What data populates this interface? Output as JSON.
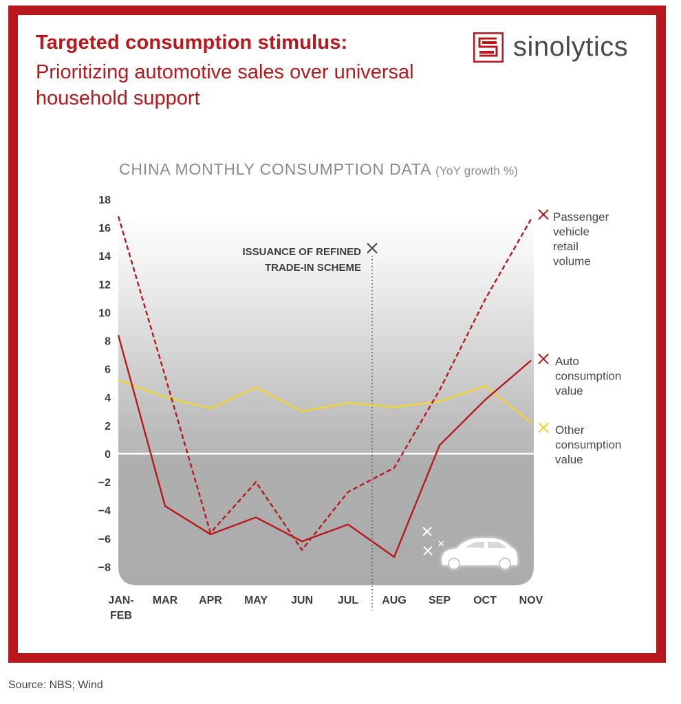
{
  "header": {
    "title_bold": "Targeted consumption stimulus:",
    "title_rest": "Prioritizing automotive sales over universal household support",
    "brand": "sinolytics",
    "brand_color": "#b8181c"
  },
  "chart_title": "CHINA MONTHLY CONSUMPTION DATA",
  "chart_subtitle": "(YoY growth %)",
  "annotation": {
    "line1": "ISSUANCE OF REFINED",
    "line2": "TRADE-IN SCHEME",
    "position": "between JUL and AUG"
  },
  "source": "Source: NBS; Wind",
  "chart_data": {
    "type": "line",
    "title": "CHINA MONTHLY CONSUMPTION DATA",
    "subtitle": "(YoY growth %)",
    "xlabel": "",
    "ylabel": "YoY growth %",
    "categories": [
      "JAN-FEB",
      "MAR",
      "APR",
      "MAY",
      "JUN",
      "JUL",
      "AUG",
      "SEP",
      "OCT",
      "NOV"
    ],
    "yticks": [
      -8,
      -6,
      -4,
      -2,
      0,
      2,
      4,
      6,
      8,
      10,
      12,
      14,
      16,
      18
    ],
    "ylim": [
      -9,
      18
    ],
    "grid": false,
    "legend": "right (end-of-line labels)",
    "series": [
      {
        "name": "Passenger vehicle retail volume",
        "style": "dashed",
        "color": "#b8181c",
        "values": [
          16.8,
          5.5,
          -5.6,
          -2.0,
          -6.8,
          -2.7,
          -1.0,
          4.5,
          10.9,
          16.6
        ]
      },
      {
        "name": "Auto consumption value",
        "style": "solid",
        "color": "#b8181c",
        "values": [
          8.4,
          -3.7,
          -5.7,
          -4.5,
          -6.2,
          -5.0,
          -7.3,
          0.6,
          3.8,
          6.6
        ]
      },
      {
        "name": "Other consumption value",
        "style": "solid",
        "color": "#f0d531",
        "values": [
          5.2,
          4.0,
          3.2,
          4.7,
          3.0,
          3.6,
          3.3,
          3.7,
          4.8,
          2.2
        ]
      }
    ],
    "legend_labels": [
      [
        "Passenger",
        "vehicle",
        "retail",
        "volume"
      ],
      [
        "Auto",
        "consumption",
        "value"
      ],
      [
        "Other",
        "consumption",
        "value"
      ]
    ]
  }
}
